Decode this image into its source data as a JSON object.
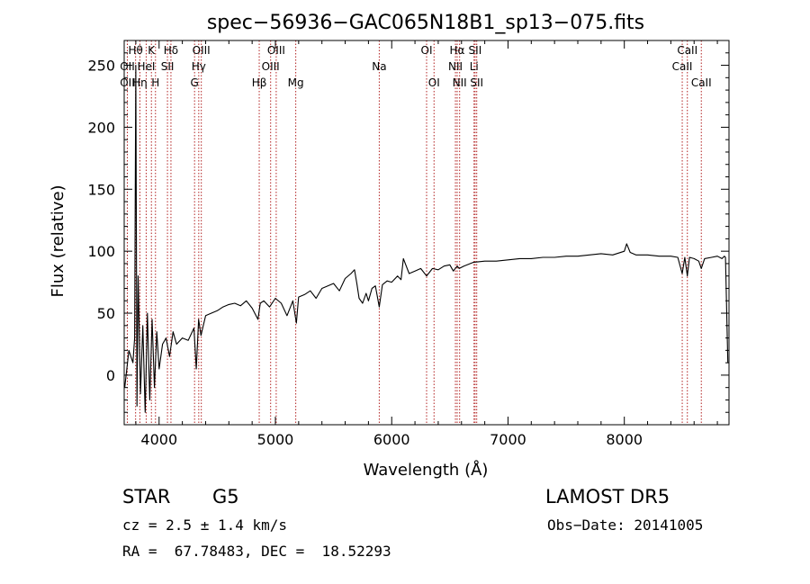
{
  "chart_data": {
    "type": "line",
    "title": "spec−56936−GAC065N18B1_sp13−075.fits",
    "xlabel": "Wavelength (Å)",
    "ylabel": "Flux (relative)",
    "xlim": [
      3700,
      8900
    ],
    "ylim": [
      -40,
      270
    ],
    "xticks": [
      4000,
      5000,
      6000,
      7000,
      8000
    ],
    "xtick_labels": [
      "4000",
      "5000",
      "6000",
      "7000",
      "8000"
    ],
    "yticks": [
      0,
      50,
      100,
      150,
      200,
      250
    ],
    "ytick_labels": [
      "0",
      "50",
      "100",
      "150",
      "200",
      "250"
    ],
    "grid": false,
    "lines": [
      {
        "label": "Hθ",
        "x": 3798,
        "row": 0
      },
      {
        "label": "OII",
        "x": 3727,
        "row": 1
      },
      {
        "label": "OII",
        "x": 3727,
        "row": 2
      },
      {
        "label": "Hη",
        "x": 3835,
        "row": 2
      },
      {
        "label": "HeI",
        "x": 3889,
        "row": 1
      },
      {
        "label": "K",
        "x": 3934,
        "row": 0
      },
      {
        "label": "H",
        "x": 3969,
        "row": 2
      },
      {
        "label": "SII",
        "x": 4072,
        "row": 1
      },
      {
        "label": "Hδ",
        "x": 4102,
        "row": 0
      },
      {
        "label": "OIII",
        "x": 4363,
        "row": 0
      },
      {
        "label": "Hγ",
        "x": 4341,
        "row": 1
      },
      {
        "label": "G",
        "x": 4305,
        "row": 2
      },
      {
        "label": "Hβ",
        "x": 4861,
        "row": 2
      },
      {
        "label": "OIII",
        "x": 5007,
        "row": 0
      },
      {
        "label": "OIII",
        "x": 4959,
        "row": 1
      },
      {
        "label": "Mg",
        "x": 5175,
        "row": 2
      },
      {
        "label": "Na",
        "x": 5893,
        "row": 1
      },
      {
        "label": "OI",
        "x": 6300,
        "row": 0
      },
      {
        "label": "OI",
        "x": 6364,
        "row": 2
      },
      {
        "label": "Hα",
        "x": 6563,
        "row": 0
      },
      {
        "label": "NII",
        "x": 6548,
        "row": 1
      },
      {
        "label": "NII",
        "x": 6584,
        "row": 2
      },
      {
        "label": "SII",
        "x": 6717,
        "row": 0
      },
      {
        "label": "Li",
        "x": 6708,
        "row": 1
      },
      {
        "label": "SII",
        "x": 6731,
        "row": 2
      },
      {
        "label": "CaII",
        "x": 8542,
        "row": 0
      },
      {
        "label": "CaII",
        "x": 8498,
        "row": 1
      },
      {
        "label": "CaII",
        "x": 8662,
        "row": 2
      }
    ],
    "series": [
      {
        "color": "#000000",
        "x": [
          3705,
          3740,
          3775,
          3790,
          3800,
          3810,
          3820,
          3840,
          3860,
          3880,
          3900,
          3920,
          3940,
          3960,
          3980,
          4000,
          4030,
          4060,
          4090,
          4120,
          4150,
          4200,
          4250,
          4300,
          4320,
          4340,
          4360,
          4400,
          4450,
          4500,
          4550,
          4600,
          4650,
          4700,
          4750,
          4800,
          4850,
          4870,
          4900,
          4950,
          5000,
          5050,
          5100,
          5150,
          5180,
          5200,
          5250,
          5300,
          5350,
          5400,
          5450,
          5500,
          5550,
          5600,
          5650,
          5680,
          5700,
          5720,
          5750,
          5780,
          5800,
          5830,
          5860,
          5893,
          5920,
          5960,
          6000,
          6050,
          6080,
          6100,
          6150,
          6200,
          6250,
          6300,
          6350,
          6400,
          6450,
          6500,
          6530,
          6563,
          6580,
          6620,
          6700,
          6800,
          6900,
          7000,
          7100,
          7200,
          7300,
          7400,
          7500,
          7600,
          7700,
          7800,
          7900,
          8000,
          8020,
          8050,
          8100,
          8200,
          8300,
          8400,
          8460,
          8498,
          8520,
          8542,
          8560,
          8600,
          8640,
          8662,
          8690,
          8750,
          8800,
          8840,
          8860,
          8870,
          8890
        ],
        "y": [
          -10,
          20,
          10,
          30,
          250,
          -25,
          80,
          -15,
          40,
          -30,
          50,
          -20,
          45,
          -10,
          35,
          5,
          25,
          30,
          15,
          35,
          25,
          30,
          28,
          38,
          5,
          45,
          32,
          48,
          50,
          52,
          55,
          57,
          58,
          56,
          60,
          54,
          45,
          58,
          60,
          55,
          62,
          58,
          48,
          60,
          42,
          63,
          65,
          68,
          62,
          70,
          72,
          74,
          68,
          78,
          82,
          85,
          74,
          62,
          58,
          66,
          60,
          70,
          72,
          55,
          73,
          76,
          75,
          80,
          77,
          94,
          82,
          84,
          86,
          80,
          86,
          85,
          88,
          89,
          84,
          88,
          86,
          88,
          91,
          92,
          92,
          93,
          94,
          94,
          95,
          95,
          96,
          96,
          97,
          98,
          97,
          100,
          106,
          99,
          97,
          97,
          96,
          96,
          95,
          82,
          95,
          80,
          95,
          94,
          92,
          86,
          94,
          95,
          96,
          94,
          96,
          95,
          10
        ]
      }
    ]
  },
  "info": {
    "object_class": "STAR",
    "subclass": "G5",
    "cz_text": "cz = 2.5 ± 1.4 km/s",
    "coords_text": "RA =  67.78483, DEC =  18.52293",
    "survey": "LAMOST DR5",
    "obs_date_text": "Obs−Date: 20141005"
  }
}
